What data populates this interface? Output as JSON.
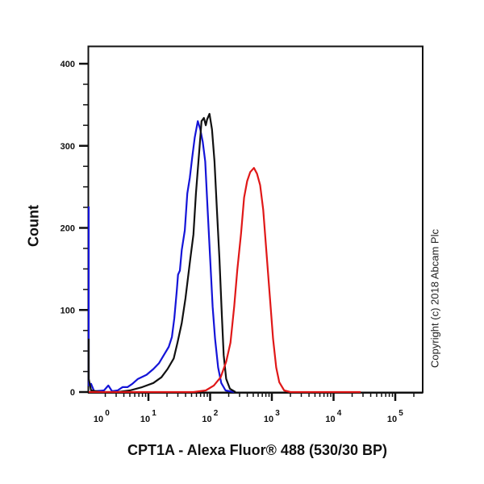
{
  "chart_data": {
    "type": "line",
    "subtype": "flow-cytometry-histogram-overlay",
    "title": "",
    "xlabel": "CPT1A - Alexa Fluor® 488 (530/30 BP)",
    "ylabel": "Count",
    "xscale": "log",
    "x_tick_labels": [
      "10^0",
      "10^1",
      "10^2",
      "10^3",
      "10^4",
      "10^5"
    ],
    "x_ticks_log10": [
      0,
      1,
      2,
      3,
      4,
      5
    ],
    "y_ticks": [
      0,
      100,
      200,
      300,
      400
    ],
    "ylim": [
      0,
      420
    ],
    "grid": false,
    "legend": null,
    "annotation": "Copyright (c) 2018 Abcam Plc",
    "series": [
      {
        "name": "blue",
        "color": "#1414d8",
        "points_log10_count": [
          [
            -0.03,
            226
          ],
          [
            -0.02,
            45
          ],
          [
            0.01,
            8
          ],
          [
            0.07,
            10
          ],
          [
            0.12,
            1
          ],
          [
            0.28,
            2
          ],
          [
            0.35,
            8
          ],
          [
            0.41,
            1
          ],
          [
            0.5,
            2
          ],
          [
            0.58,
            6
          ],
          [
            0.66,
            6
          ],
          [
            0.74,
            10
          ],
          [
            0.83,
            16
          ],
          [
            0.97,
            21
          ],
          [
            1.08,
            28
          ],
          [
            1.17,
            35
          ],
          [
            1.25,
            45
          ],
          [
            1.33,
            55
          ],
          [
            1.38,
            67
          ],
          [
            1.42,
            90
          ],
          [
            1.46,
            124
          ],
          [
            1.48,
            143
          ],
          [
            1.51,
            148
          ],
          [
            1.54,
            173
          ],
          [
            1.59,
            197
          ],
          [
            1.63,
            242
          ],
          [
            1.67,
            261
          ],
          [
            1.71,
            286
          ],
          [
            1.75,
            310
          ],
          [
            1.8,
            330
          ],
          [
            1.84,
            320
          ],
          [
            1.88,
            305
          ],
          [
            1.92,
            281
          ],
          [
            1.96,
            222
          ],
          [
            2.0,
            163
          ],
          [
            2.04,
            104
          ],
          [
            2.08,
            65
          ],
          [
            2.13,
            30
          ],
          [
            2.18,
            11
          ],
          [
            2.25,
            2
          ],
          [
            2.39,
            0
          ]
        ]
      },
      {
        "name": "black",
        "color": "#111111",
        "points_log10_count": [
          [
            -0.03,
            65
          ],
          [
            0.01,
            16
          ],
          [
            0.07,
            2
          ],
          [
            0.23,
            0
          ],
          [
            0.5,
            0
          ],
          [
            0.7,
            2
          ],
          [
            0.9,
            6
          ],
          [
            1.08,
            11
          ],
          [
            1.21,
            18
          ],
          [
            1.31,
            28
          ],
          [
            1.41,
            41
          ],
          [
            1.47,
            60
          ],
          [
            1.54,
            84
          ],
          [
            1.6,
            114
          ],
          [
            1.64,
            139
          ],
          [
            1.68,
            163
          ],
          [
            1.73,
            192
          ],
          [
            1.77,
            242
          ],
          [
            1.81,
            281
          ],
          [
            1.84,
            310
          ],
          [
            1.86,
            330
          ],
          [
            1.9,
            334
          ],
          [
            1.93,
            325
          ],
          [
            1.95,
            332
          ],
          [
            1.99,
            339
          ],
          [
            2.03,
            320
          ],
          [
            2.07,
            281
          ],
          [
            2.11,
            222
          ],
          [
            2.15,
            163
          ],
          [
            2.19,
            94
          ],
          [
            2.22,
            45
          ],
          [
            2.26,
            16
          ],
          [
            2.32,
            4
          ],
          [
            2.41,
            0
          ]
        ]
      },
      {
        "name": "red",
        "color": "#e01818",
        "points_log10_count": [
          [
            -0.03,
            0
          ],
          [
            1.73,
            0
          ],
          [
            1.93,
            2
          ],
          [
            2.06,
            8
          ],
          [
            2.17,
            18
          ],
          [
            2.26,
            37
          ],
          [
            2.33,
            60
          ],
          [
            2.39,
            104
          ],
          [
            2.44,
            149
          ],
          [
            2.5,
            193
          ],
          [
            2.55,
            237
          ],
          [
            2.6,
            257
          ],
          [
            2.65,
            268
          ],
          [
            2.71,
            273
          ],
          [
            2.76,
            266
          ],
          [
            2.81,
            252
          ],
          [
            2.86,
            222
          ],
          [
            2.91,
            173
          ],
          [
            2.97,
            114
          ],
          [
            3.02,
            65
          ],
          [
            3.07,
            30
          ],
          [
            3.12,
            12
          ],
          [
            3.2,
            2
          ],
          [
            3.3,
            0
          ],
          [
            4.44,
            0
          ]
        ]
      }
    ]
  },
  "labels": {
    "ylabel": "Count",
    "xlabel": "CPT1A - Alexa Fluor® 488 (530/30 BP)",
    "copyright": "Copyright (c) 2018 Abcam Plc"
  }
}
